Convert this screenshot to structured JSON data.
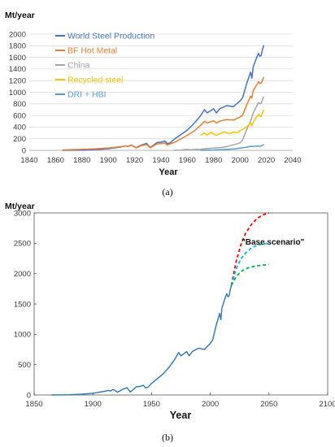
{
  "chart_data": [
    {
      "type": "line",
      "caption": "(a)",
      "ylabel": "Mt/year",
      "xlabel": "Year",
      "xlim": [
        1840,
        2040
      ],
      "ylim": [
        0,
        2000
      ],
      "xticks": [
        1840,
        1860,
        1880,
        1900,
        1920,
        1940,
        1960,
        1980,
        2000,
        2020,
        2040
      ],
      "yticks": [
        0,
        200,
        400,
        600,
        800,
        1000,
        1200,
        1400,
        1600,
        1800,
        2000
      ],
      "grid": "horizontal",
      "legend_position": "top-left",
      "series": [
        {
          "name": "World Steel Production",
          "color": "#4472C4",
          "x": [
            1865,
            1870,
            1880,
            1890,
            1900,
            1905,
            1910,
            1913,
            1915,
            1917,
            1919,
            1921,
            1925,
            1929,
            1930,
            1932,
            1935,
            1937,
            1940,
            1943,
            1945,
            1947,
            1950,
            1955,
            1960,
            1965,
            1970,
            1973,
            1975,
            1980,
            1982,
            1985,
            1990,
            1995,
            2000,
            2002,
            2005,
            2008,
            2009,
            2010,
            2012,
            2014,
            2015,
            2016,
            2017,
            2018
          ],
          "y": [
            0,
            1,
            4,
            12,
            28,
            44,
            60,
            75,
            66,
            90,
            75,
            45,
            90,
            120,
            95,
            50,
            100,
            135,
            140,
            160,
            115,
            130,
            190,
            270,
            350,
            460,
            595,
            700,
            645,
            715,
            645,
            720,
            770,
            752,
            850,
            905,
            1145,
            1345,
            1240,
            1435,
            1560,
            1670,
            1620,
            1630,
            1730,
            1810
          ]
        },
        {
          "name": "BF Hot Metal",
          "color": "#ED7D31",
          "x": [
            1865,
            1870,
            1880,
            1890,
            1900,
            1905,
            1910,
            1913,
            1915,
            1917,
            1919,
            1921,
            1925,
            1929,
            1930,
            1932,
            1935,
            1937,
            1940,
            1943,
            1945,
            1947,
            1950,
            1955,
            1960,
            1965,
            1970,
            1973,
            1975,
            1980,
            1982,
            1985,
            1990,
            1995,
            2000,
            2002,
            2005,
            2008,
            2009,
            2010,
            2012,
            2014,
            2015,
            2016,
            2017,
            2018
          ],
          "y": [
            5,
            10,
            18,
            26,
            40,
            52,
            65,
            75,
            68,
            85,
            72,
            40,
            80,
            100,
            85,
            45,
            85,
            110,
            115,
            125,
            90,
            110,
            135,
            195,
            260,
            330,
            430,
            500,
            470,
            510,
            470,
            505,
            530,
            520,
            575,
            605,
            780,
            930,
            900,
            1030,
            1100,
            1180,
            1150,
            1160,
            1200,
            1260
          ]
        },
        {
          "name": "China",
          "color": "#A5A5A5",
          "x": [
            1950,
            1955,
            1960,
            1962,
            1965,
            1970,
            1975,
            1980,
            1985,
            1990,
            1995,
            2000,
            2002,
            2005,
            2008,
            2010,
            2012,
            2014,
            2015,
            2016,
            2017,
            2018
          ],
          "y": [
            1,
            3,
            18,
            8,
            15,
            20,
            30,
            40,
            48,
            65,
            95,
            128,
            182,
            355,
            500,
            640,
            730,
            822,
            803,
            808,
            870,
            925
          ]
        },
        {
          "name": "Recycled steel",
          "color": "#FFC000",
          "x": [
            1970,
            1973,
            1975,
            1978,
            1980,
            1982,
            1985,
            1988,
            1990,
            1993,
            1995,
            1998,
            2000,
            2003,
            2005,
            2008,
            2009,
            2010,
            2012,
            2014,
            2015,
            2016,
            2017,
            2018
          ],
          "y": [
            260,
            300,
            265,
            310,
            280,
            260,
            290,
            320,
            300,
            290,
            320,
            300,
            340,
            370,
            400,
            470,
            420,
            480,
            560,
            620,
            590,
            580,
            640,
            700
          ]
        },
        {
          "name": "DRI + HBI",
          "color": "#5B9BD5",
          "x": [
            1970,
            1975,
            1980,
            1985,
            1990,
            1995,
            2000,
            2005,
            2008,
            2009,
            2010,
            2012,
            2014,
            2015,
            2016,
            2017,
            2018
          ],
          "y": [
            1,
            4,
            7,
            12,
            18,
            25,
            38,
            55,
            68,
            65,
            70,
            72,
            75,
            72,
            73,
            87,
            100
          ]
        }
      ]
    },
    {
      "type": "line",
      "caption": "(b)",
      "ylabel": "Mt/year",
      "xlabel": "Year",
      "xlim": [
        1850,
        2100
      ],
      "ylim": [
        0,
        3000
      ],
      "xticks": [
        1850,
        1900,
        1950,
        2000,
        2050,
        2100
      ],
      "yticks": [
        0,
        500,
        1000,
        1500,
        2000,
        2500,
        3000
      ],
      "grid": "none",
      "annotations": [
        {
          "text": "\"Base scenario\""
        }
      ],
      "series": [
        {
          "color": "#2E75B6",
          "style": "solid",
          "x": [
            1865,
            1870,
            1880,
            1890,
            1900,
            1905,
            1910,
            1913,
            1915,
            1917,
            1919,
            1921,
            1925,
            1929,
            1930,
            1932,
            1935,
            1937,
            1940,
            1943,
            1945,
            1947,
            1950,
            1955,
            1960,
            1965,
            1970,
            1973,
            1975,
            1980,
            1982,
            1985,
            1990,
            1995,
            2000,
            2002,
            2005,
            2008,
            2009,
            2010,
            2012,
            2014,
            2015,
            2016,
            2017,
            2018
          ],
          "y": [
            0,
            1,
            4,
            12,
            28,
            44,
            60,
            75,
            66,
            90,
            75,
            45,
            90,
            120,
            95,
            50,
            100,
            135,
            140,
            160,
            115,
            130,
            190,
            270,
            350,
            460,
            595,
            700,
            645,
            715,
            645,
            720,
            770,
            752,
            850,
            905,
            1145,
            1345,
            1240,
            1435,
            1560,
            1670,
            1620,
            1630,
            1730,
            1810
          ]
        },
        {
          "color": "#FF0000",
          "style": "dashed",
          "x": [
            2018,
            2022,
            2026,
            2030,
            2035,
            2040,
            2045,
            2050
          ],
          "y": [
            1810,
            2200,
            2470,
            2660,
            2810,
            2910,
            2970,
            3000
          ]
        },
        {
          "color": "#00B0F0",
          "style": "dashed",
          "x": [
            2018,
            2022,
            2026,
            2030,
            2035,
            2040,
            2045,
            2050
          ],
          "y": [
            1810,
            2080,
            2240,
            2340,
            2420,
            2470,
            2490,
            2500
          ]
        },
        {
          "color": "#00B050",
          "style": "dashed",
          "x": [
            2018,
            2022,
            2026,
            2030,
            2035,
            2040,
            2045,
            2050
          ],
          "y": [
            1810,
            1950,
            2030,
            2080,
            2110,
            2130,
            2140,
            2150
          ]
        }
      ]
    }
  ]
}
